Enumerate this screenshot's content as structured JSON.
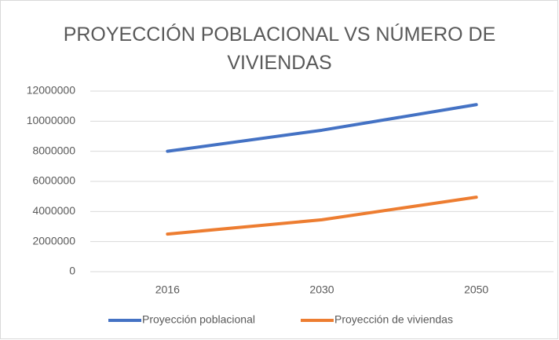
{
  "chart_data": {
    "type": "line",
    "title": "PROYECCIÓN POBLACIONAL VS NÚMERO DE VIVIENDAS",
    "categories": [
      "2016",
      "2030",
      "2050"
    ],
    "series": [
      {
        "name": "Proyección poblacional",
        "color": "#4472c4",
        "values": [
          8000000,
          9400000,
          11100000
        ]
      },
      {
        "name": "Proyección de viviendas",
        "color": "#ed7d31",
        "values": [
          2500000,
          3450000,
          4950000
        ]
      }
    ],
    "ylim": [
      0,
      12000000
    ],
    "yticks": [
      0,
      2000000,
      4000000,
      6000000,
      8000000,
      10000000,
      12000000
    ],
    "grid": true,
    "legend": "bottom"
  }
}
